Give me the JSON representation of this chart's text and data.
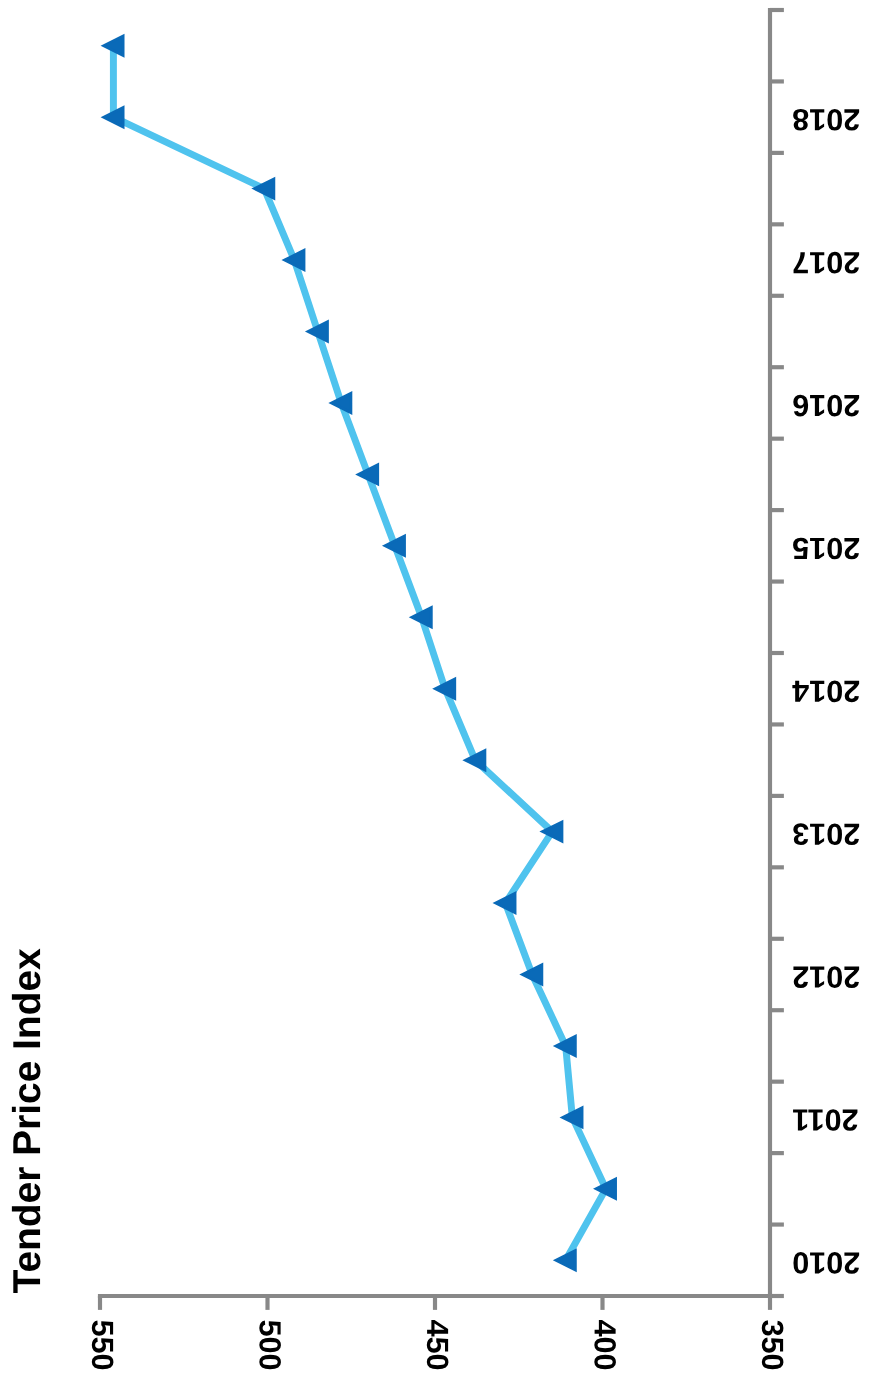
{
  "chart_data": {
    "type": "line",
    "orientation": "horizontal",
    "ylabel": "Tender Price Index",
    "categories": [
      null,
      "2018",
      null,
      "2017",
      null,
      "2016",
      null,
      "2015",
      null,
      "2014",
      null,
      "2013",
      null,
      "2012",
      null,
      "2011",
      null,
      "2010"
    ],
    "series": [
      {
        "color": "#4fc3ee",
        "values": [
          546,
          546,
          501,
          492,
          485,
          478,
          470,
          462,
          454,
          447,
          438,
          415,
          429,
          421,
          411,
          409,
          399,
          411
        ]
      }
    ],
    "xlim": [
      550,
      350
    ],
    "xticks": [
      550,
      500,
      450,
      400,
      350
    ],
    "marker": "triangle",
    "line_style": "solid",
    "grid": false,
    "legend": false
  }
}
